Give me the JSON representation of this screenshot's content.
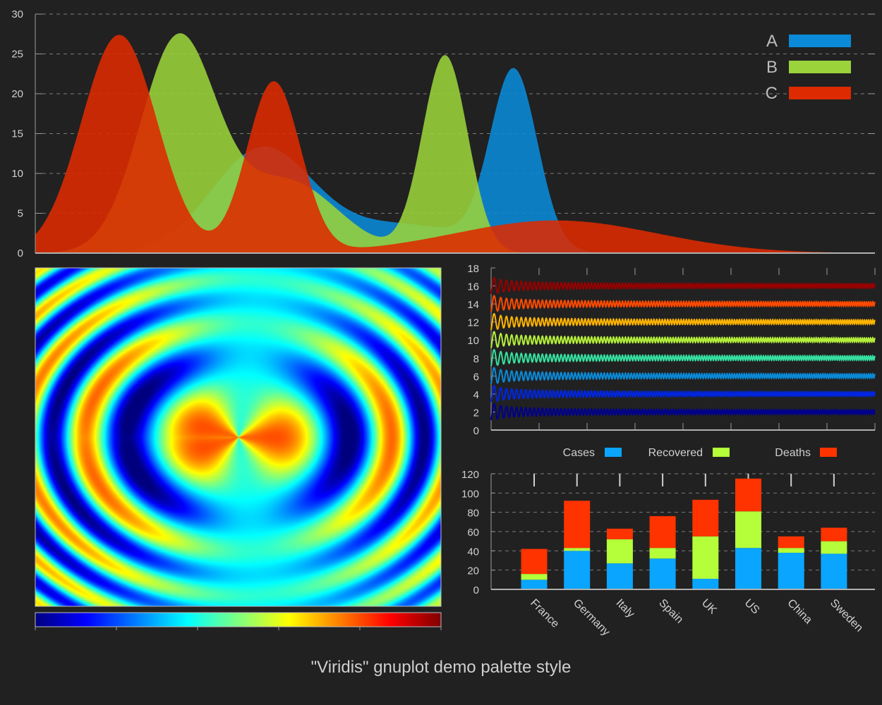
{
  "caption": "\"Viridis\" gnuplot demo palette style",
  "chart_data": [
    {
      "type": "area",
      "ylim": [
        0,
        30
      ],
      "yticks": [
        0,
        5,
        10,
        15,
        20,
        25,
        30
      ],
      "grid": true,
      "legend_position": "top-right",
      "series": [
        {
          "name": "A",
          "color": "#0a8ad8",
          "peaks": [
            {
              "center": 0.57,
              "height": 22.3,
              "width": 0.028
            },
            {
              "center": 0.27,
              "height": 13.0,
              "width": 0.06
            },
            {
              "center": 0.44,
              "height": 3.5,
              "width": 0.08
            }
          ]
        },
        {
          "name": "B",
          "color": "#9ad33a",
          "peaks": [
            {
              "center": 0.488,
              "height": 24.8,
              "width": 0.027
            },
            {
              "center": 0.17,
              "height": 26.7,
              "width": 0.045
            },
            {
              "center": 0.3,
              "height": 9.0,
              "width": 0.06
            }
          ]
        },
        {
          "name": "C",
          "color": "#dd2a00",
          "peaks": [
            {
              "center": 0.1,
              "height": 27.4,
              "width": 0.045
            },
            {
              "center": 0.284,
              "height": 21.5,
              "width": 0.032
            },
            {
              "center": 0.62,
              "height": 4.1,
              "width": 0.12
            }
          ]
        }
      ]
    },
    {
      "type": "heatmap",
      "palette": [
        "#00007f",
        "#0000ff",
        "#007fff",
        "#00ffff",
        "#7fff7f",
        "#ffff00",
        "#ff7f00",
        "#ff0000",
        "#7f0000"
      ],
      "colorbar": true
    },
    {
      "type": "line",
      "ylim": [
        0,
        18
      ],
      "yticks": [
        0,
        2,
        4,
        6,
        8,
        10,
        12,
        14,
        16,
        18
      ],
      "series": [
        {
          "offset": 2,
          "color": "#00008f"
        },
        {
          "offset": 4,
          "color": "#0026e6"
        },
        {
          "offset": 6,
          "color": "#0a8ad8"
        },
        {
          "offset": 8,
          "color": "#36e0a0"
        },
        {
          "offset": 10,
          "color": "#b4ef3a"
        },
        {
          "offset": 12,
          "color": "#ffb400"
        },
        {
          "offset": 14,
          "color": "#ff4a00"
        },
        {
          "offset": 16,
          "color": "#9a0000"
        }
      ]
    },
    {
      "type": "bar",
      "stacked": true,
      "ylim": [
        0,
        120
      ],
      "yticks": [
        0,
        20,
        40,
        60,
        80,
        100,
        120
      ],
      "grid": true,
      "legend_position": "top",
      "categories": [
        "France",
        "Germany",
        "Italy",
        "Spain",
        "UK",
        "US",
        "China",
        "Sweden"
      ],
      "series": [
        {
          "name": "Cases",
          "color": "#0aa5ff",
          "values": [
            10,
            40,
            27,
            32,
            11,
            43,
            38,
            37
          ]
        },
        {
          "name": "Recovered",
          "color": "#b4ff3a",
          "values": [
            6,
            3,
            25,
            11,
            44,
            38,
            5,
            13
          ]
        },
        {
          "name": "Deaths",
          "color": "#ff3300",
          "values": [
            26,
            49,
            11,
            33,
            38,
            34,
            12,
            14
          ]
        }
      ]
    }
  ]
}
